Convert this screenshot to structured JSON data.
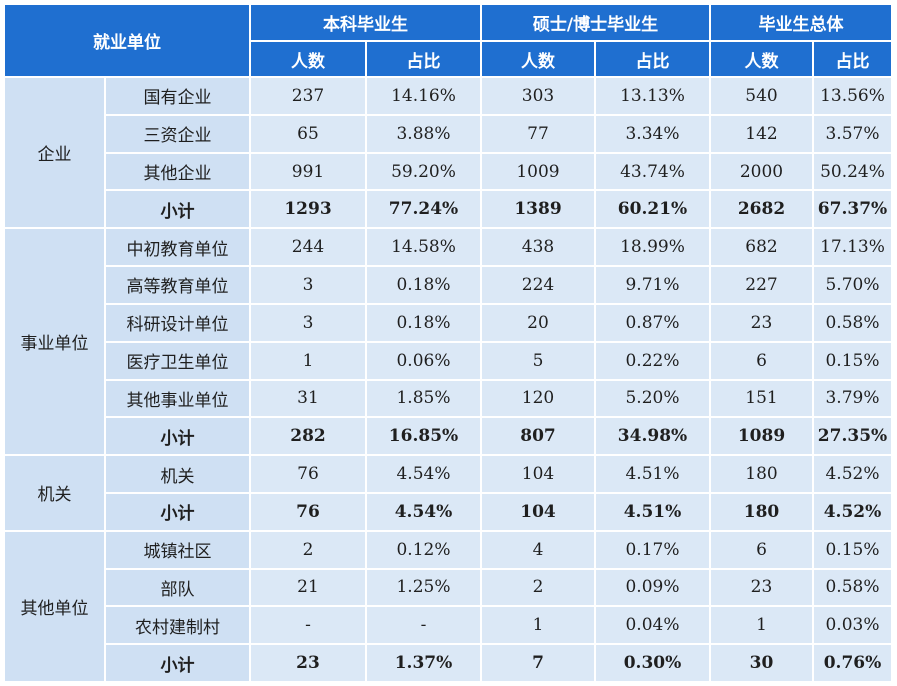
{
  "header": {
    "unit_label": "就业单位",
    "groups": [
      "本科毕业生",
      "硕士/博士毕业生",
      "毕业生总体"
    ],
    "count_label": "人数",
    "ratio_label": "占比"
  },
  "sections": [
    {
      "name": "企业",
      "rows": [
        {
          "label": "国有企业",
          "cells": [
            "237",
            "14.16%",
            "303",
            "13.13%",
            "540",
            "13.56%"
          ]
        },
        {
          "label": "三资企业",
          "cells": [
            "65",
            "3.88%",
            "77",
            "3.34%",
            "142",
            "3.57%"
          ]
        },
        {
          "label": "其他企业",
          "cells": [
            "991",
            "59.20%",
            "1009",
            "43.74%",
            "2000",
            "50.24%"
          ]
        },
        {
          "label": "小计",
          "subtotal": true,
          "cells": [
            "1293",
            "77.24%",
            "1389",
            "60.21%",
            "2682",
            "67.37%"
          ]
        }
      ]
    },
    {
      "name": "事业单位",
      "rows": [
        {
          "label": "中初教育单位",
          "cells": [
            "244",
            "14.58%",
            "438",
            "18.99%",
            "682",
            "17.13%"
          ]
        },
        {
          "label": "高等教育单位",
          "cells": [
            "3",
            "0.18%",
            "224",
            "9.71%",
            "227",
            "5.70%"
          ]
        },
        {
          "label": "科研设计单位",
          "cells": [
            "3",
            "0.18%",
            "20",
            "0.87%",
            "23",
            "0.58%"
          ]
        },
        {
          "label": "医疗卫生单位",
          "cells": [
            "1",
            "0.06%",
            "5",
            "0.22%",
            "6",
            "0.15%"
          ]
        },
        {
          "label": "其他事业单位",
          "cells": [
            "31",
            "1.85%",
            "120",
            "5.20%",
            "151",
            "3.79%"
          ]
        },
        {
          "label": "小计",
          "subtotal": true,
          "cells": [
            "282",
            "16.85%",
            "807",
            "34.98%",
            "1089",
            "27.35%"
          ]
        }
      ]
    },
    {
      "name": "机关",
      "rows": [
        {
          "label": "机关",
          "cells": [
            "76",
            "4.54%",
            "104",
            "4.51%",
            "180",
            "4.52%"
          ]
        },
        {
          "label": "小计",
          "subtotal": true,
          "cells": [
            "76",
            "4.54%",
            "104",
            "4.51%",
            "180",
            "4.52%"
          ]
        }
      ]
    },
    {
      "name": "其他单位",
      "rows": [
        {
          "label": "城镇社区",
          "cells": [
            "2",
            "0.12%",
            "4",
            "0.17%",
            "6",
            "0.15%"
          ]
        },
        {
          "label": "部队",
          "cells": [
            "21",
            "1.25%",
            "2",
            "0.09%",
            "23",
            "0.58%"
          ]
        },
        {
          "label": "农村建制村",
          "cells": [
            "-",
            "-",
            "1",
            "0.04%",
            "1",
            "0.03%"
          ]
        },
        {
          "label": "小计",
          "subtotal": true,
          "cells": [
            "23",
            "1.37%",
            "7",
            "0.30%",
            "30",
            "0.76%"
          ]
        }
      ]
    }
  ]
}
